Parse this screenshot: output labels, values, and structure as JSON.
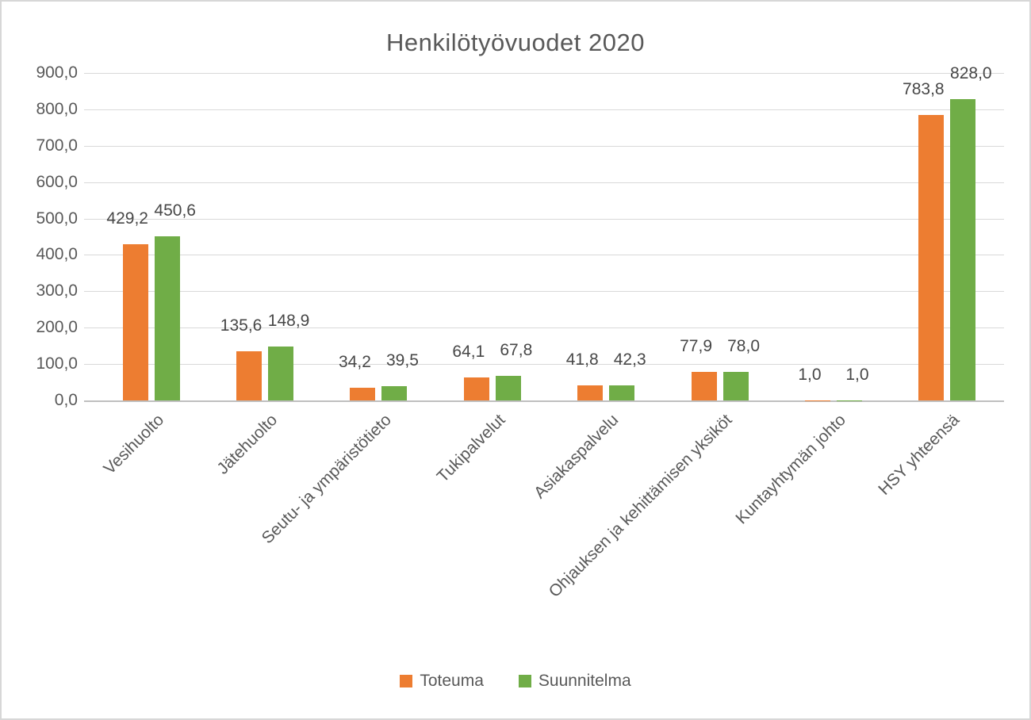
{
  "title": "Henkilötyövuodet 2020",
  "colors": {
    "toteuma": "#ED7D31",
    "suunnitelma": "#70AD47",
    "gridline": "#D9D9D9",
    "axis_line": "#BFBFBF",
    "text": "#595959"
  },
  "chart_data": {
    "type": "bar",
    "title": "Henkilötyövuodet 2020",
    "categories": [
      "Vesihuolto",
      "Jätehuolto",
      "Seutu- ja ympäristötieto",
      "Tukipalvelut",
      "Asiakaspalvelu",
      "Ohjauksen ja kehittämisen yksiköt",
      "Kuntayhtymän johto",
      "HSY yhteensä"
    ],
    "series": [
      {
        "name": "Toteuma",
        "color": "#ED7D31",
        "values": [
          429.2,
          135.6,
          34.2,
          64.1,
          41.8,
          77.9,
          1.0,
          783.8
        ],
        "labels": [
          "429,2",
          "135,6",
          "34,2",
          "64,1",
          "41,8",
          "77,9",
          "1,0",
          "783,8"
        ]
      },
      {
        "name": "Suunnitelma",
        "color": "#70AD47",
        "values": [
          450.6,
          148.9,
          39.5,
          67.8,
          42.3,
          78.0,
          1.0,
          828.0
        ],
        "labels": [
          "450,6",
          "148,9",
          "39,5",
          "67,8",
          "42,3",
          "78,0",
          "1,0",
          "828,0"
        ]
      }
    ],
    "ylim": [
      0,
      900
    ],
    "ytick_step": 100,
    "ytick_labels": [
      "0,0",
      "100,0",
      "200,0",
      "300,0",
      "400,0",
      "500,0",
      "600,0",
      "700,0",
      "800,0",
      "900,0"
    ],
    "grid": true,
    "legend_position": "bottom",
    "x_label_rotation_deg": -45
  }
}
